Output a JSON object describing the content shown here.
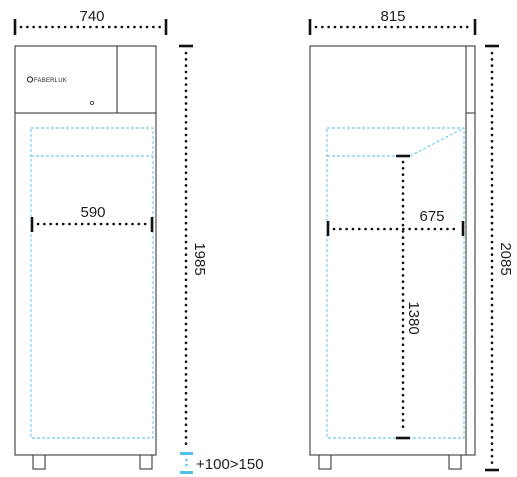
{
  "brand": "FABERLUK",
  "dimensions": {
    "front_width": "740",
    "front_height": "1985",
    "inner_width": "590",
    "side_depth": "815",
    "side_height": "2085",
    "inner_depth": "675",
    "inner_height": "1380",
    "clearance": "+100>150"
  },
  "colors": {
    "body_outline": "#2a2a2a",
    "inner_dashed": "#4fc0e8",
    "dimension": "#111111",
    "clearance_marker": "#4fc0e8"
  }
}
